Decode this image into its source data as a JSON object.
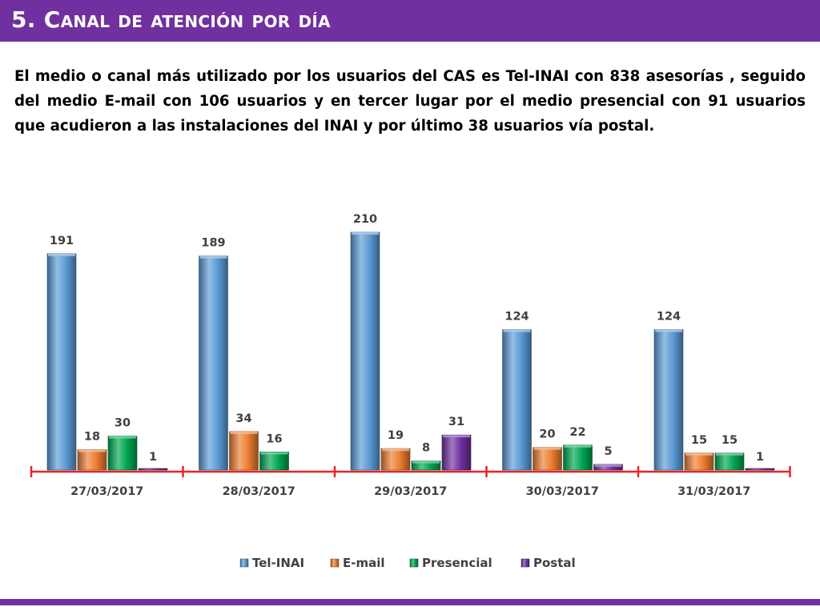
{
  "header": {
    "title": "5. Canal de atención por día"
  },
  "description": "El medio o canal más utilizado por los usuarios del CAS es Tel-INAI con 838 asesorías , seguido del medio E-mail con 106 usuarios y en tercer lugar por el medio presencial con 91 usuarios que acudieron a las instalaciones del INAI y por último 38 usuarios vía postal.",
  "colors": {
    "header_bg": "#7030a0",
    "axis": "#e8232a"
  },
  "chart_data": {
    "type": "bar",
    "categories": [
      "27/03/2017",
      "28/03/2017",
      "29/03/2017",
      "30/03/2017",
      "31/03/2017"
    ],
    "series": [
      {
        "name": "Tel-INAI",
        "color": "#5b9bd5",
        "values": [
          191,
          189,
          210,
          124,
          124
        ]
      },
      {
        "name": "E-mail",
        "color": "#ed7d31",
        "values": [
          18,
          34,
          19,
          20,
          15
        ]
      },
      {
        "name": "Presencial",
        "color": "#00a651",
        "values": [
          30,
          16,
          8,
          22,
          15
        ]
      },
      {
        "name": "Postal",
        "color": "#7030a0",
        "values": [
          1,
          null,
          31,
          5,
          1
        ]
      }
    ],
    "data_labels": [
      [
        "191",
        "18",
        "30",
        "1"
      ],
      [
        "189",
        "34",
        "16",
        ""
      ],
      [
        "210",
        "19",
        "8",
        "31"
      ],
      [
        "124",
        "20",
        "22",
        "5"
      ],
      [
        "124",
        "15",
        "15",
        "1"
      ]
    ],
    "title": "",
    "xlabel": "",
    "ylabel": "",
    "ylim": [
      0,
      220
    ],
    "grid": false,
    "legend_position": "bottom"
  }
}
